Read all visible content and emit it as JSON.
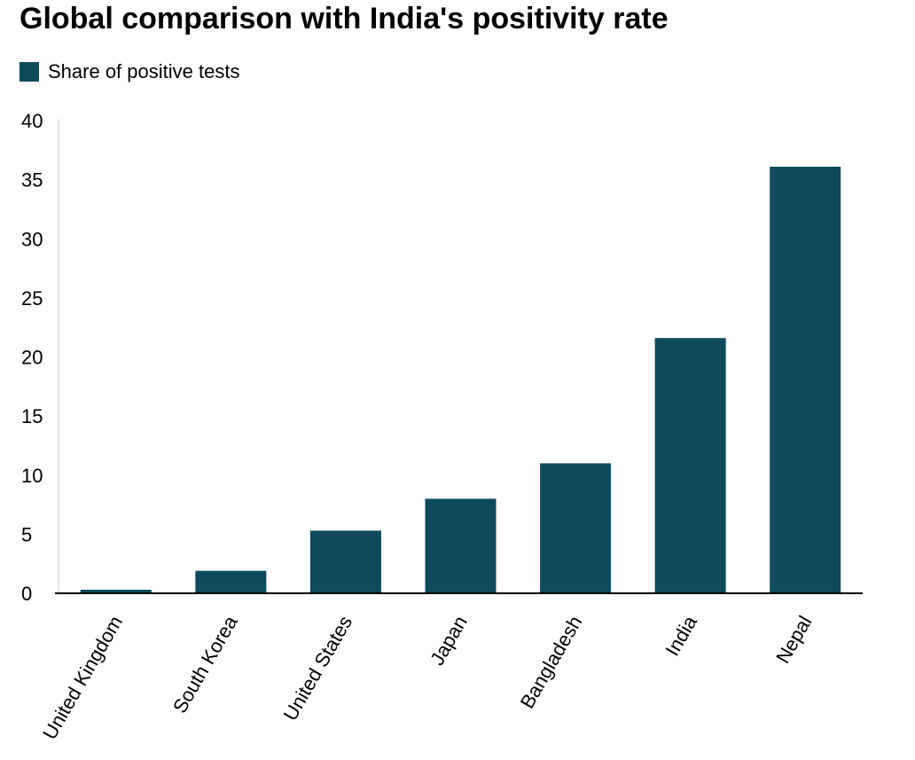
{
  "chart_data": {
    "type": "bar",
    "title": "Global comparison with India's positivity rate",
    "xlabel": "",
    "ylabel": "",
    "categories": [
      "United Kingdom",
      "South Korea",
      "United States",
      "Japan",
      "Bangladesh",
      "India",
      "Nepal"
    ],
    "series": [
      {
        "name": "Share of positive tests",
        "values": [
          0.3,
          1.9,
          5.3,
          8.0,
          11.0,
          21.6,
          36.1
        ],
        "color": "#0d4a5c"
      }
    ],
    "yticks": [
      "0",
      "5",
      "10",
      "15",
      "20",
      "25",
      "30",
      "35",
      "40"
    ],
    "ylim": [
      0,
      40
    ],
    "grid": false,
    "legend_position": "top-left"
  }
}
